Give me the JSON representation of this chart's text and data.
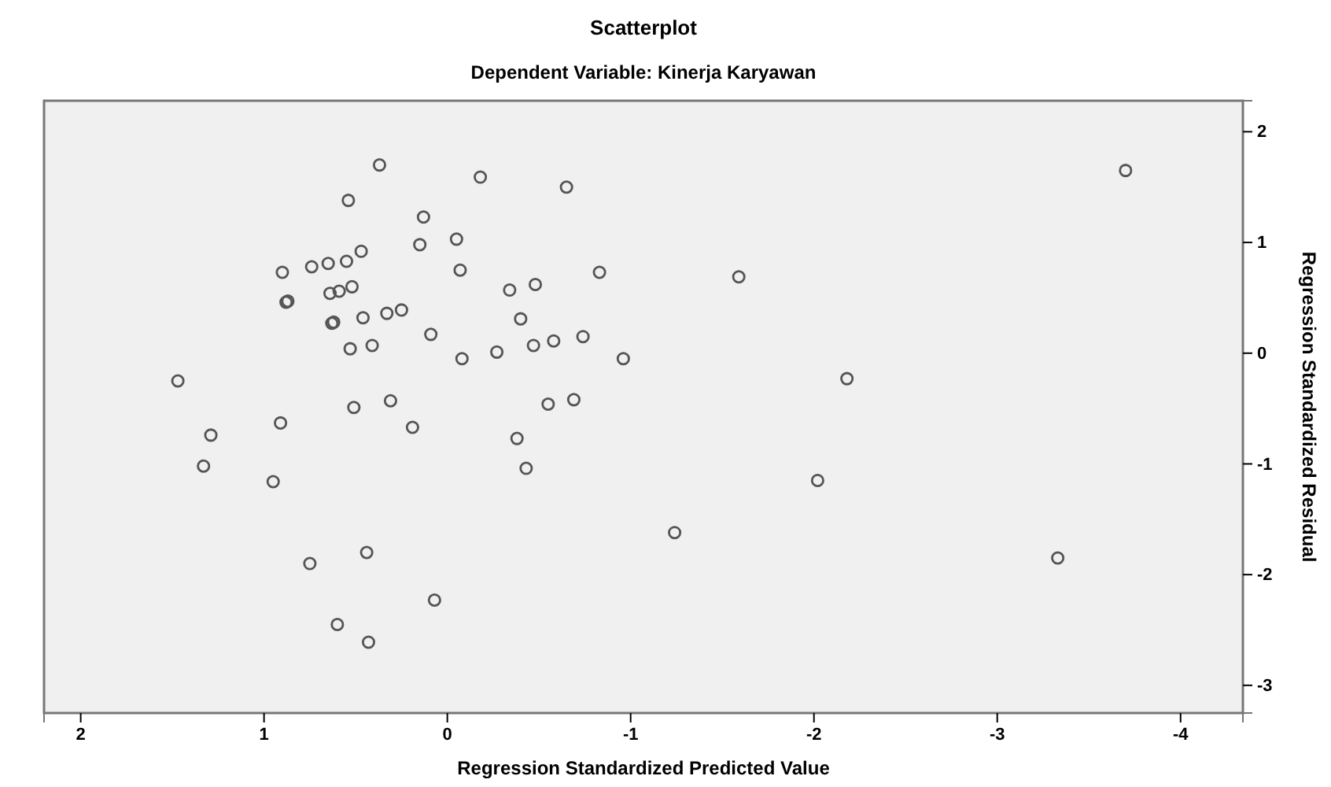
{
  "chart_data": {
    "type": "scatter",
    "title": "Scatterplot",
    "subtitle": "Dependent Variable: Kinerja Karyawan",
    "xlabel": "Regression Standardized Predicted Value",
    "ylabel": "Regression Standardized Residual",
    "marker": "circle",
    "color": "#555555",
    "xlim": [
      2.2,
      -4.34
    ],
    "xticks": [
      2,
      1,
      0,
      -1,
      -2,
      -3,
      -4
    ],
    "ylim": [
      -3.25,
      2.28
    ],
    "yticks": [
      2,
      1,
      0,
      -1,
      -2,
      -3
    ],
    "x": [
      0.37,
      -0.18,
      -0.65,
      0.54,
      0.13,
      0.15,
      -0.05,
      0.47,
      0.55,
      0.65,
      0.74,
      0.9,
      -0.07,
      -0.83,
      -0.34,
      -0.48,
      0.52,
      0.59,
      0.64,
      0.88,
      0.87,
      0.63,
      0.62,
      0.46,
      0.33,
      0.25,
      -0.4,
      0.09,
      0.53,
      0.41,
      -0.08,
      -0.27,
      -0.47,
      -0.58,
      -0.74,
      -0.96,
      1.47,
      0.31,
      0.51,
      -0.55,
      -0.69,
      0.91,
      1.29,
      0.19,
      -0.38,
      1.33,
      -0.43,
      0.95,
      -1.24,
      0.44,
      0.75,
      0.07,
      0.6,
      0.43,
      -3.7,
      -1.59,
      -2.18,
      -2.02,
      -3.33
    ],
    "values": [
      1.7,
      1.59,
      1.5,
      1.38,
      1.23,
      0.98,
      1.03,
      0.92,
      0.83,
      0.81,
      0.78,
      0.73,
      0.75,
      0.73,
      0.57,
      0.62,
      0.6,
      0.56,
      0.54,
      0.46,
      0.47,
      0.27,
      0.28,
      0.32,
      0.36,
      0.39,
      0.31,
      0.17,
      0.04,
      0.07,
      -0.05,
      0.01,
      0.07,
      0.11,
      0.15,
      -0.05,
      -0.25,
      -0.43,
      -0.49,
      -0.46,
      -0.42,
      -0.63,
      -0.74,
      -0.67,
      -0.77,
      -1.02,
      -1.04,
      -1.16,
      -1.62,
      -1.8,
      -1.9,
      -2.23,
      -2.45,
      -2.61,
      1.65,
      0.69,
      -0.23,
      -1.15,
      -1.85
    ]
  }
}
